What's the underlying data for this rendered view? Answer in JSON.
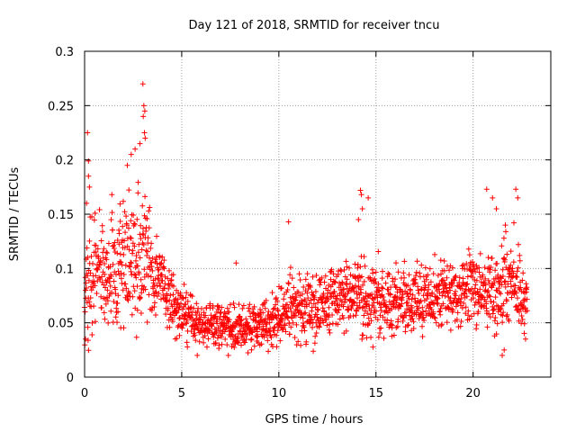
{
  "chart_data": {
    "type": "scatter",
    "title": "Day 121 of 2018, SRMTID for receiver tncu",
    "xlabel": "GPS time / hours",
    "ylabel": "SRMTID / TECUs",
    "xlim": [
      0,
      24
    ],
    "ylim": [
      0,
      0.3
    ],
    "xticks": [
      0,
      5,
      10,
      15,
      20
    ],
    "yticks": [
      0,
      0.05,
      0.1,
      0.15,
      0.2,
      0.25,
      0.3
    ],
    "xtick_labels": [
      "0",
      "5",
      "10",
      "15",
      "20"
    ],
    "ytick_labels": [
      "0",
      "0.05",
      "0.1",
      "0.15",
      "0.2",
      "0.25",
      "0.3"
    ],
    "grid": true,
    "marker": "plus",
    "marker_color": "#ff0000",
    "grid_color": "#a0a0a0",
    "x_end": 22.8,
    "profile": [
      {
        "x": 0.0,
        "center": 0.075,
        "spread": 0.055
      },
      {
        "x": 0.25,
        "center": 0.1,
        "spread": 0.09
      },
      {
        "x": 1.0,
        "center": 0.095,
        "spread": 0.065
      },
      {
        "x": 2.0,
        "center": 0.105,
        "spread": 0.08
      },
      {
        "x": 3.0,
        "center": 0.12,
        "spread": 0.11
      },
      {
        "x": 3.5,
        "center": 0.1,
        "spread": 0.06
      },
      {
        "x": 4.2,
        "center": 0.075,
        "spread": 0.045
      },
      {
        "x": 5.0,
        "center": 0.058,
        "spread": 0.035
      },
      {
        "x": 6.0,
        "center": 0.047,
        "spread": 0.028
      },
      {
        "x": 8.0,
        "center": 0.046,
        "spread": 0.028
      },
      {
        "x": 9.5,
        "center": 0.048,
        "spread": 0.03
      },
      {
        "x": 10.5,
        "center": 0.062,
        "spread": 0.045
      },
      {
        "x": 12.0,
        "center": 0.06,
        "spread": 0.04
      },
      {
        "x": 13.0,
        "center": 0.075,
        "spread": 0.05
      },
      {
        "x": 14.5,
        "center": 0.075,
        "spread": 0.055
      },
      {
        "x": 16.0,
        "center": 0.068,
        "spread": 0.045
      },
      {
        "x": 18.0,
        "center": 0.075,
        "spread": 0.045
      },
      {
        "x": 19.5,
        "center": 0.08,
        "spread": 0.05
      },
      {
        "x": 21.0,
        "center": 0.078,
        "spread": 0.05
      },
      {
        "x": 22.0,
        "center": 0.09,
        "spread": 0.06
      },
      {
        "x": 22.8,
        "center": 0.07,
        "spread": 0.04
      }
    ],
    "outliers": [
      {
        "x": 0.15,
        "y": 0.225
      },
      {
        "x": 0.2,
        "y": 0.199
      },
      {
        "x": 0.2,
        "y": 0.185
      },
      {
        "x": 0.25,
        "y": 0.175
      },
      {
        "x": 0.1,
        "y": 0.16
      },
      {
        "x": 0.05,
        "y": 0.035
      },
      {
        "x": 2.2,
        "y": 0.195
      },
      {
        "x": 2.4,
        "y": 0.205
      },
      {
        "x": 2.6,
        "y": 0.21
      },
      {
        "x": 2.85,
        "y": 0.215
      },
      {
        "x": 3.0,
        "y": 0.27
      },
      {
        "x": 3.05,
        "y": 0.25
      },
      {
        "x": 3.1,
        "y": 0.245
      },
      {
        "x": 3.02,
        "y": 0.24
      },
      {
        "x": 3.08,
        "y": 0.225
      },
      {
        "x": 3.12,
        "y": 0.22
      },
      {
        "x": 7.8,
        "y": 0.105
      },
      {
        "x": 10.5,
        "y": 0.143
      },
      {
        "x": 14.2,
        "y": 0.172
      },
      {
        "x": 14.25,
        "y": 0.168
      },
      {
        "x": 14.3,
        "y": 0.155
      },
      {
        "x": 14.6,
        "y": 0.165
      },
      {
        "x": 14.1,
        "y": 0.145
      },
      {
        "x": 20.7,
        "y": 0.173
      },
      {
        "x": 21.0,
        "y": 0.165
      },
      {
        "x": 21.2,
        "y": 0.155
      },
      {
        "x": 22.2,
        "y": 0.173
      },
      {
        "x": 22.3,
        "y": 0.165
      },
      {
        "x": 22.1,
        "y": 0.142
      },
      {
        "x": 21.5,
        "y": 0.02
      },
      {
        "x": 21.6,
        "y": 0.025
      },
      {
        "x": 22.7,
        "y": 0.035
      },
      {
        "x": 5.8,
        "y": 0.02
      },
      {
        "x": 7.4,
        "y": 0.02
      }
    ]
  }
}
